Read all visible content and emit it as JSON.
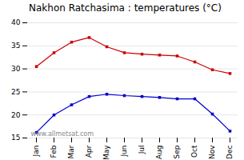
{
  "chart_data": {
    "type": "line",
    "title": "Nakhon Ratchasima : temperatures (°C)",
    "categories": [
      "Jan",
      "Feb",
      "Mar",
      "Apr",
      "May",
      "Jun",
      "Jul",
      "Aug",
      "Sep",
      "Oct",
      "Nov",
      "Dec"
    ],
    "series": [
      {
        "color": "#cc0000",
        "marker": "square",
        "values": [
          30.5,
          33.5,
          35.8,
          36.8,
          34.8,
          33.5,
          33.2,
          33.0,
          32.8,
          31.5,
          29.8,
          29.0
        ]
      },
      {
        "color": "#0000cc",
        "marker": "square",
        "values": [
          16.2,
          20.0,
          22.2,
          24.0,
          24.5,
          24.2,
          24.0,
          23.8,
          23.5,
          23.5,
          20.2,
          16.5
        ]
      }
    ],
    "ylim": [
      15,
      40
    ],
    "yticks": [
      15,
      20,
      25,
      30,
      35,
      40
    ],
    "grid": true,
    "annotations": [
      "www.allmetsat.com"
    ]
  }
}
